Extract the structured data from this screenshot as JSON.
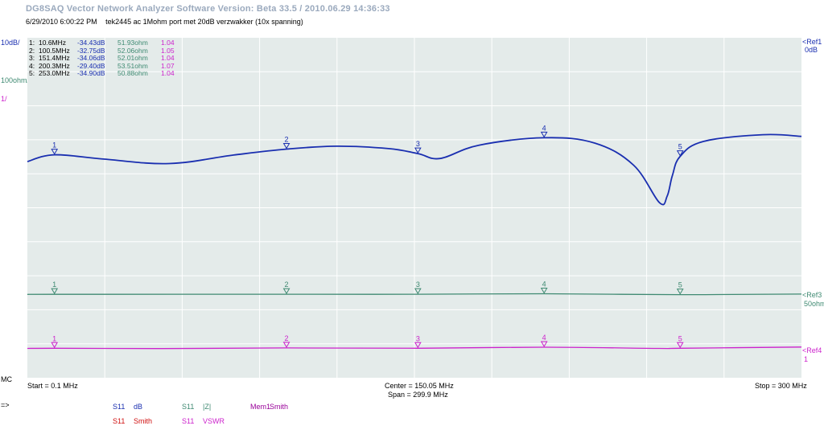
{
  "window": {
    "title": "DG8SAQ Vector Network Analyzer Software   Version:  Beta 33.5 / 2010.06.29 14:36:33",
    "timestamp": "6/29/2010    6:00:22 PM",
    "description": "tek2445 ac 1Mohm port met 20dB verzwakker (10x spanning)"
  },
  "colors": {
    "db_trace": "#1a2fb0",
    "z_trace": "#3f8a72",
    "vswr_trace": "#cc22cc",
    "plot_bg": "#e4ebea",
    "grid": "#ffffff",
    "smith": "#d01010",
    "mem": "#990099"
  },
  "scale_labels": {
    "db_div": "10dB/",
    "ohm_div": "100ohm/",
    "vswr_div": "1/",
    "ref1": "<Ref1",
    "ref1_val": "0dB",
    "ref3": "<Ref3",
    "ref3_val": "50ohm",
    "ref4": "<Ref4",
    "ref4_val": "1",
    "mc": "MC",
    "arrow": "=>"
  },
  "markers": [
    {
      "id": "1",
      "label": "1:",
      "freq": "10.6MHz",
      "db": "-34.43dB",
      "ohm": "51.93ohm",
      "vswr": "1.04"
    },
    {
      "id": "2",
      "label": "2:",
      "freq": "100.5MHz",
      "db": "-32.75dB",
      "ohm": "52.06ohm",
      "vswr": "1.05"
    },
    {
      "id": "3",
      "label": "3:",
      "freq": "151.4MHz",
      "db": "-34.06dB",
      "ohm": "52.01ohm",
      "vswr": "1.04"
    },
    {
      "id": "4",
      "label": "4:",
      "freq": "200.3MHz",
      "db": "-29.40dB",
      "ohm": "53.51ohm",
      "vswr": "1.07"
    },
    {
      "id": "5",
      "label": "5:",
      "freq": "253.0MHz",
      "db": "-34.90dB",
      "ohm": "50.88ohm",
      "vswr": "1.04"
    }
  ],
  "axis": {
    "start": "Start = 0.1 MHz",
    "center": "Center = 150.05 MHz",
    "span": "Span = 299.9 MHz",
    "stop": "Stop = 300 MHz"
  },
  "legend": [
    {
      "port": "S11",
      "name": "dB",
      "color": "#1a2fb0"
    },
    {
      "port": "S11",
      "name": "Smith",
      "color": "#d01010"
    },
    {
      "port": "S11",
      "name": "|Z|",
      "color": "#3f8a72"
    },
    {
      "port": "S11",
      "name": "VSWR",
      "color": "#cc22cc"
    },
    {
      "port": "Mem1",
      "name": "Smith",
      "color": "#990099"
    }
  ],
  "chart_data": {
    "type": "line",
    "xlim": [
      0.1,
      300
    ],
    "x_unit": "MHz",
    "grid": true,
    "series": [
      {
        "name": "dB",
        "y_scale": "10dB/div",
        "ylim": [
          -100,
          0
        ],
        "x": [
          0.1,
          10.6,
          30,
          55,
          80,
          100.5,
          120,
          140,
          151.4,
          160,
          175,
          200.3,
          220,
          235,
          245,
          248,
          250,
          253.0,
          262,
          285,
          300
        ],
        "y": [
          -36.4,
          -34.43,
          -35.7,
          -37.0,
          -34.5,
          -32.75,
          -31.9,
          -32.6,
          -34.06,
          -35.5,
          -31.6,
          -29.4,
          -31.0,
          -37.5,
          -48.5,
          -46.5,
          -40.5,
          -34.9,
          -30.5,
          -28.5,
          -29.0
        ]
      },
      {
        "name": "|Z|",
        "y_scale": "100ohm/div",
        "x": [
          0.1,
          10.6,
          100.5,
          151.4,
          200.3,
          253.0,
          300
        ],
        "y": [
          51.5,
          51.93,
          52.06,
          52.01,
          53.51,
          50.88,
          52.5
        ]
      },
      {
        "name": "VSWR",
        "y_scale": "1/div",
        "x": [
          0.1,
          10.6,
          50,
          100.5,
          151.4,
          200.3,
          245,
          253.0,
          300
        ],
        "y": [
          1.035,
          1.04,
          1.03,
          1.05,
          1.04,
          1.07,
          1.035,
          1.04,
          1.075
        ]
      }
    ]
  }
}
